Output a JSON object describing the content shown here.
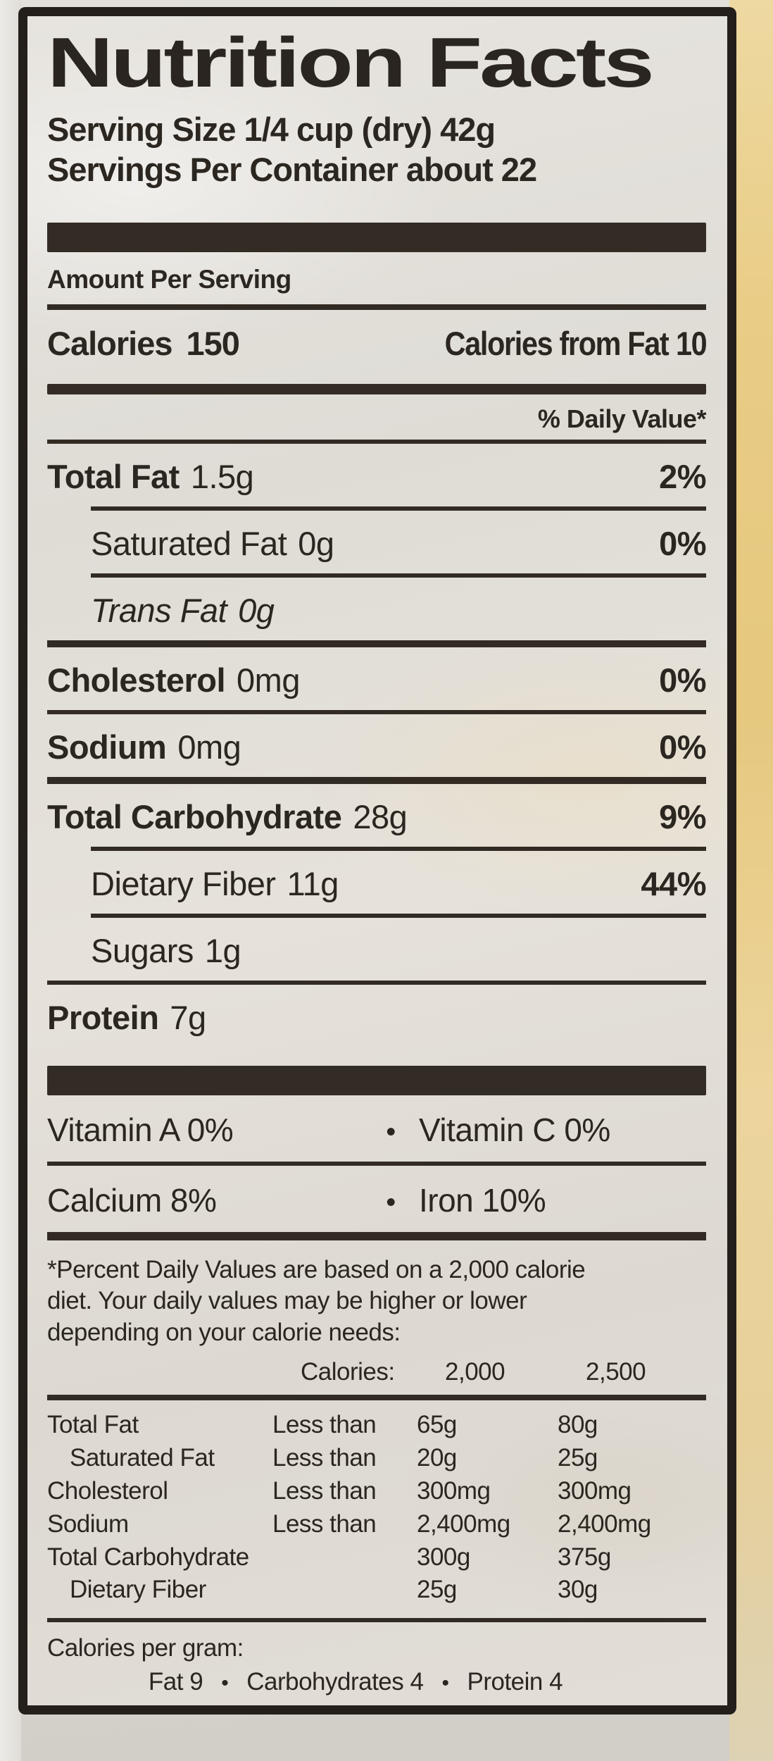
{
  "label": {
    "title": "Nutrition Facts",
    "serving_size": "Serving Size 1/4 cup (dry) 42g",
    "servings_per_container": "Servings Per Container about 22",
    "amount_per_serving": "Amount Per Serving",
    "calories_label": "Calories",
    "calories_value": "150",
    "calories_from_fat_label": "Calories from Fat",
    "calories_from_fat_value": "10",
    "daily_value_header": "% Daily Value*",
    "bullet": "•",
    "nutrients": [
      {
        "name": "Total Fat",
        "amount": "1.5g",
        "dv": "2%"
      },
      {
        "name": "Saturated Fat",
        "amount": "0g",
        "dv": "0%"
      },
      {
        "name": "Trans Fat",
        "amount": "0g",
        "dv": ""
      },
      {
        "name": "Cholesterol",
        "amount": "0mg",
        "dv": "0%"
      },
      {
        "name": "Sodium",
        "amount": "0mg",
        "dv": "0%"
      },
      {
        "name": "Total Carbohydrate",
        "amount": "28g",
        "dv": "9%"
      },
      {
        "name": "Dietary Fiber",
        "amount": "11g",
        "dv": "44%"
      },
      {
        "name": "Sugars",
        "amount": "1g",
        "dv": ""
      },
      {
        "name": "Protein",
        "amount": "7g",
        "dv": ""
      }
    ],
    "vitamins": [
      {
        "left": "Vitamin A 0%",
        "right": "Vitamin C 0%"
      },
      {
        "left": "Calcium 8%",
        "right": "Iron 10%"
      }
    ],
    "footnote_line1": "*Percent Daily Values are based on a 2,000 calorie",
    "footnote_line2": "diet. Your daily values may be higher or lower",
    "footnote_line3": "depending on your calorie needs:",
    "dv_table": {
      "header": {
        "calories_label": "Calories:",
        "col_2000": "2,000",
        "col_2500": "2,500"
      },
      "rows": [
        {
          "name": "Total Fat",
          "qual": "Less than",
          "v2000": "65g",
          "v2500": "80g"
        },
        {
          "name": "Saturated Fat",
          "qual": "Less than",
          "v2000": "20g",
          "v2500": "25g"
        },
        {
          "name": "Cholesterol",
          "qual": "Less than",
          "v2000": "300mg",
          "v2500": "300mg"
        },
        {
          "name": "Sodium",
          "qual": "Less than",
          "v2000": "2,400mg",
          "v2500": "2,400mg"
        },
        {
          "name": "Total Carbohydrate",
          "qual": "",
          "v2000": "300g",
          "v2500": "375g"
        },
        {
          "name": "Dietary Fiber",
          "qual": "",
          "v2000": "25g",
          "v2500": "30g"
        }
      ]
    },
    "calories_per_gram": {
      "label": "Calories per gram:",
      "items": [
        "Fat 9",
        "Carbohydrates 4",
        "Protein 4"
      ]
    }
  },
  "colors": {
    "label_background": "#e3dfd8",
    "ink": "#2b2620",
    "package_right": "#e6c87e",
    "outer_background": "#d8d4ce"
  }
}
